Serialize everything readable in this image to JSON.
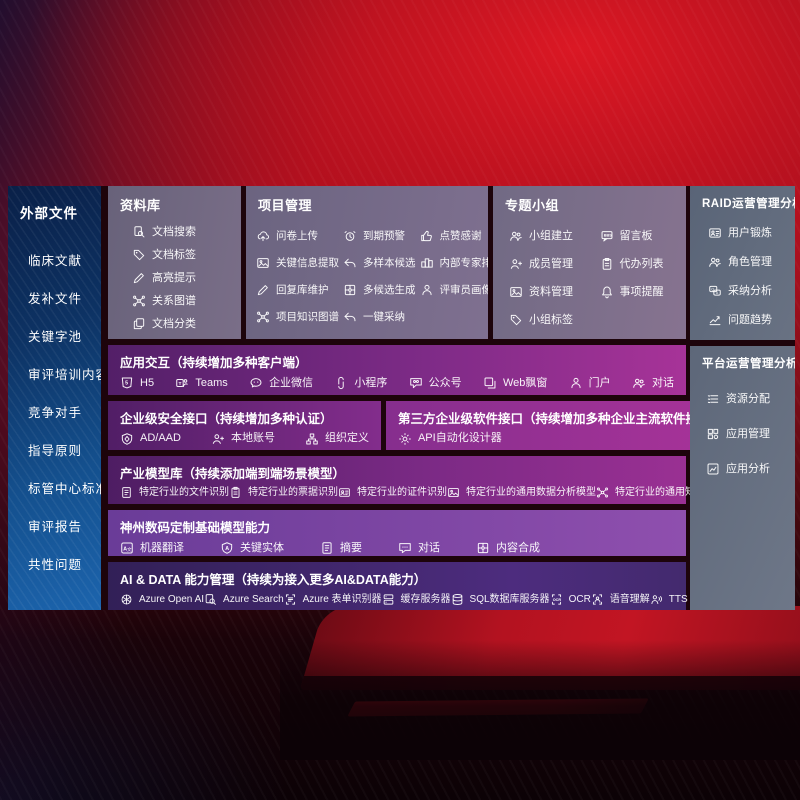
{
  "colors": {
    "background_red": "#b31220",
    "background_dark": "#0c0206",
    "sidebar_blue_top": "#0a2048",
    "sidebar_blue_bottom": "#1c64ad",
    "panel_gray": "#6f6882",
    "panel_slate": "#5d6779",
    "row_purple_left": "#531f68",
    "row_purple_right": "#a73398",
    "row_violet": "#7c45a3",
    "row_indigo": "#3c2566",
    "text": "#ffffff"
  },
  "sidebar": {
    "title": "外部文件",
    "items": [
      "临床文献",
      "发补文件",
      "关键字池",
      "审评培训内容",
      "竞争对手",
      "指导原则",
      "标管中心标准",
      "审评报告",
      "共性问题"
    ]
  },
  "library": {
    "title": "资料库",
    "items": [
      {
        "icon": "doc-search",
        "label": "文档搜索"
      },
      {
        "icon": "tag",
        "label": "文档标签"
      },
      {
        "icon": "pen",
        "label": "高亮提示"
      },
      {
        "icon": "network",
        "label": "关系图谱"
      },
      {
        "icon": "copy",
        "label": "文档分类"
      }
    ]
  },
  "project": {
    "title": "项目管理",
    "items": [
      {
        "icon": "cloud-up",
        "label": "问卷上传"
      },
      {
        "icon": "alarm",
        "label": "到期预警"
      },
      {
        "icon": "thumb",
        "label": "点赞感谢"
      },
      {
        "icon": "image",
        "label": "关键信息提取"
      },
      {
        "icon": "reply",
        "label": "多样本候选"
      },
      {
        "icon": "podium",
        "label": "内部专家排名"
      },
      {
        "icon": "pen",
        "label": "回复库维护"
      },
      {
        "icon": "puzzle",
        "label": "多候选生成"
      },
      {
        "icon": "person",
        "label": "评审员画像"
      },
      {
        "icon": "network",
        "label": "项目知识图谱"
      },
      {
        "icon": "reply",
        "label": "一键采纳"
      }
    ]
  },
  "group": {
    "title": "专题小组",
    "items": [
      {
        "icon": "users",
        "label": "小组建立"
      },
      {
        "icon": "bbs",
        "label": "留言板"
      },
      {
        "icon": "person-plus",
        "label": "成员管理"
      },
      {
        "icon": "clipboard",
        "label": "代办列表"
      },
      {
        "icon": "image",
        "label": "资料管理"
      },
      {
        "icon": "bell",
        "label": "事项提醒"
      },
      {
        "icon": "tag",
        "label": "小组标签"
      }
    ]
  },
  "raid": {
    "title": "RAID运营管理分析",
    "items": [
      {
        "icon": "idcard",
        "label": "用户锻炼"
      },
      {
        "icon": "users",
        "label": "角色管理"
      },
      {
        "icon": "qa-chat",
        "label": "采纳分析"
      },
      {
        "icon": "trend",
        "label": "问题趋势"
      }
    ]
  },
  "platform": {
    "title": "平台运营管理分析",
    "items": [
      {
        "icon": "list",
        "label": "资源分配"
      },
      {
        "icon": "grid",
        "label": "应用管理"
      },
      {
        "icon": "chart-box",
        "label": "应用分析"
      }
    ]
  },
  "interaction": {
    "title": "应用交互（持续增加多种客户端）",
    "items": [
      {
        "icon": "h5",
        "label": "H5"
      },
      {
        "icon": "teams",
        "label": "Teams"
      },
      {
        "icon": "wechat",
        "label": "企业微信"
      },
      {
        "icon": "mini",
        "label": "小程序"
      },
      {
        "icon": "bubble-users",
        "label": "公众号"
      },
      {
        "icon": "window",
        "label": "Web飘窗"
      },
      {
        "icon": "person",
        "label": "门户"
      },
      {
        "icon": "users",
        "label": "对话"
      }
    ]
  },
  "security": {
    "title": "企业级安全接口（持续增加多种认证）",
    "items": [
      {
        "icon": "shield",
        "label": "AD/AAD"
      },
      {
        "icon": "person-plus",
        "label": "本地账号"
      },
      {
        "icon": "org",
        "label": "组织定义"
      }
    ]
  },
  "thirdparty": {
    "title": "第三方企业级软件接口（持续增加多种企业主流软件接口）",
    "items": [
      {
        "icon": "gear",
        "label": "API自动化设计器"
      }
    ]
  },
  "industry": {
    "title": "产业模型库（持续添加端到端场景模型）",
    "items": [
      {
        "icon": "doc",
        "label": "特定行业的文件识别"
      },
      {
        "icon": "clipboard",
        "label": "特定行业的票据识别"
      },
      {
        "icon": "idcard",
        "label": "特定行业的证件识别"
      },
      {
        "icon": "image",
        "label": "特定行业的通用数据分析模型"
      },
      {
        "icon": "network",
        "label": "特定行业的通用知识图谱模型"
      }
    ]
  },
  "basemodel": {
    "title": "神州数码定制基础模型能力",
    "items": [
      {
        "icon": "translate",
        "label": "机器翻译"
      },
      {
        "icon": "shield-a",
        "label": "关键实体"
      },
      {
        "icon": "doc",
        "label": "摘要"
      },
      {
        "icon": "chat-dots",
        "label": "对话"
      },
      {
        "icon": "puzzle",
        "label": "内容合成"
      }
    ]
  },
  "aidata": {
    "title": "AI & DATA 能力管理（持续为接入更多AI&DATA能力）",
    "items": [
      {
        "icon": "openai",
        "label": "Azure Open AI"
      },
      {
        "icon": "search",
        "label": "Azure Search"
      },
      {
        "icon": "form-scan",
        "label": "Azure 表单识别器"
      },
      {
        "icon": "server",
        "label": "缓存服务器"
      },
      {
        "icon": "db",
        "label": "SQL数据库服务器"
      },
      {
        "icon": "ocr",
        "label": "OCR"
      },
      {
        "icon": "speech",
        "label": "语音理解"
      },
      {
        "icon": "tts",
        "label": "TTS"
      }
    ]
  }
}
